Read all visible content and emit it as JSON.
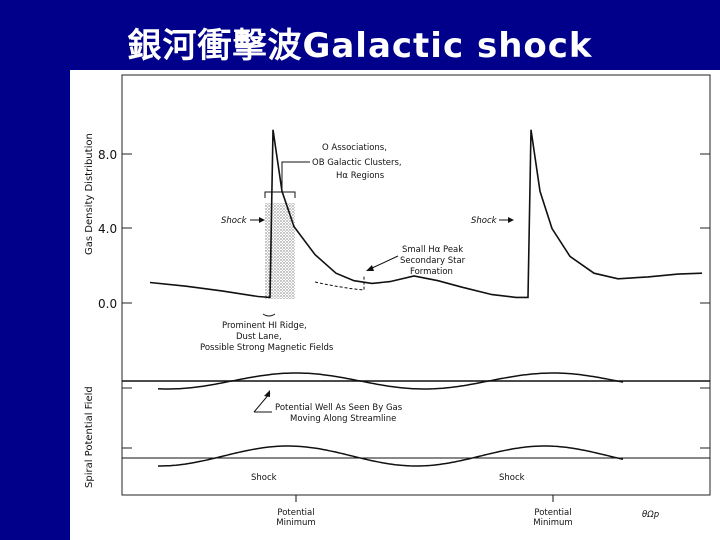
{
  "slide": {
    "title": "銀河衝擊波Galactic shock"
  },
  "chart_data": [
    {
      "type": "line",
      "panel": "top",
      "ylabel": "Gas Density Distribution",
      "yticks": [
        "8.0",
        "4.0",
        "0.0"
      ],
      "ylim": [
        0,
        8.0
      ],
      "series": [
        {
          "x": [
            0,
            12,
            24,
            36,
            40,
            41,
            44,
            48,
            55,
            62,
            68,
            74,
            80,
            88,
            96,
            104,
            114,
            122,
            126,
            127,
            130,
            134,
            140,
            148,
            156,
            166,
            176,
            184
          ],
          "values": [
            1.1,
            0.9,
            0.65,
            0.35,
            0.3,
            9.3,
            6.0,
            4.1,
            2.6,
            1.6,
            1.2,
            1.05,
            1.15,
            1.45,
            1.2,
            0.85,
            0.45,
            0.3,
            0.3,
            9.3,
            6.0,
            4.0,
            2.5,
            1.6,
            1.3,
            1.4,
            1.55,
            1.6
          ]
        }
      ],
      "annotations": {
        "o_associations": "O Associations,",
        "ob_clusters": "OB Galactic Clusters,",
        "h_regions": "Hα Regions",
        "shock_left": "Shock",
        "shock_right": "Shock",
        "small_peak_1": "Small Hα Peak",
        "small_peak_2": "Secondary Star",
        "small_peak_3": "Formation",
        "ridge_1": "Prominent HI Ridge,",
        "ridge_2": "Dust Lane,",
        "ridge_3": "Possible Strong Magnetic Fields"
      }
    },
    {
      "type": "line",
      "panel": "bottom",
      "ylabel": "Spiral Potential Field",
      "xlabel": "θΩp",
      "xticks": [
        "Potential Minimum",
        "Potential Minimum"
      ],
      "annotations": {
        "potential_well_1": "Potential Well As Seen By Gas",
        "potential_well_2": "Moving Along Streamline",
        "shock_a": "Shock",
        "shock_b": "Shock"
      }
    }
  ]
}
